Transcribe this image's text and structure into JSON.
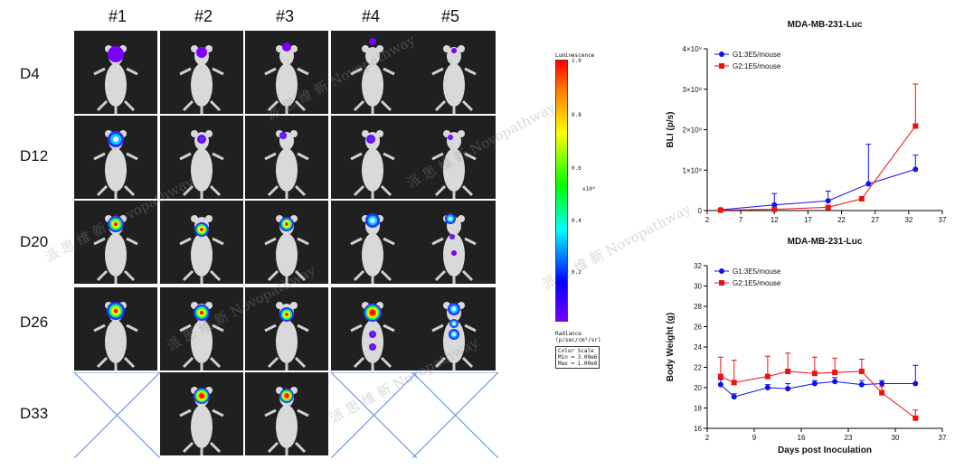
{
  "columns": [
    "#1",
    "#2",
    "#3",
    "#4",
    "#5"
  ],
  "rows": [
    "D4",
    "D12",
    "D20",
    "D26",
    "D33"
  ],
  "watermark": {
    "cn": "派 思 维 新",
    "en": "Novopathway"
  },
  "colorbar": {
    "title": "Luminescence",
    "ticks": [
      "1.0",
      "0.8",
      "0.6",
      "0.4",
      "0.2"
    ],
    "exponent": "x10⁸",
    "radiance_label": "Radiance",
    "radiance_units": "(p/sec/cm²/sr)",
    "scale_title": "Color Scale",
    "scale_min": "Min = 3.00e6",
    "scale_max": "Max = 1.00e8"
  },
  "series_colors": {
    "G1": "#1010ee",
    "G2": "#ee1111"
  },
  "chart_data": [
    {
      "type": "line",
      "title": "MDA-MB-231-Luc",
      "xlabel": "",
      "ylabel": "BLI (p/s)",
      "xlim": [
        2,
        37
      ],
      "xticks": [
        "2",
        "7",
        "12",
        "17",
        "22",
        "27",
        "32",
        "37"
      ],
      "ylim": [
        0,
        4
      ],
      "yticks": [
        "0",
        "1×10⁹",
        "2×10⁹",
        "3×10⁹",
        "4×10⁹"
      ],
      "y_unit_note": "values in units of 10⁹ p/s",
      "legend_position": "top-left",
      "series": [
        {
          "name": "G1:3E5/mouse",
          "color": "#1010ee",
          "marker": "circle",
          "x": [
            4,
            12,
            20,
            26,
            33
          ],
          "y": [
            0.02,
            0.14,
            0.24,
            0.66,
            1.02
          ],
          "err": [
            0.01,
            0.28,
            0.24,
            0.98,
            0.35
          ]
        },
        {
          "name": "G2:1E5/mouse",
          "color": "#ee1111",
          "marker": "square",
          "x": [
            4,
            12,
            20,
            25,
            33
          ],
          "y": [
            0.01,
            0.03,
            0.08,
            0.29,
            2.09
          ],
          "err": [
            0.0,
            0.0,
            0.0,
            0.0,
            1.04
          ]
        }
      ]
    },
    {
      "type": "line",
      "title": "MDA-MB-231-Luc",
      "xlabel": "Days post Inoculation",
      "ylabel": "Body Weight (g)",
      "xlim": [
        2,
        37
      ],
      "xticks": [
        "2",
        "9",
        "16",
        "23",
        "30",
        "37"
      ],
      "ylim": [
        16,
        32
      ],
      "yticks": [
        "16",
        "18",
        "20",
        "22",
        "24",
        "26",
        "28",
        "30",
        "32"
      ],
      "legend_position": "top-left",
      "series": [
        {
          "name": "G1:3E5/mouse",
          "color": "#1010ee",
          "marker": "circle",
          "x": [
            4,
            6,
            11,
            14,
            18,
            21,
            25,
            28,
            33
          ],
          "y": [
            20.3,
            19.1,
            20.0,
            19.9,
            20.4,
            20.6,
            20.3,
            20.4,
            20.4
          ],
          "err": [
            0.5,
            0.3,
            0.3,
            0.5,
            0.3,
            0.4,
            0.4,
            0.3,
            1.8
          ]
        },
        {
          "name": "G2:1E5/mouse",
          "color": "#ee1111",
          "marker": "square",
          "x": [
            4,
            6,
            11,
            14,
            18,
            21,
            25,
            28,
            33
          ],
          "y": [
            21.1,
            20.5,
            21.1,
            21.6,
            21.4,
            21.5,
            21.6,
            19.5,
            17.0
          ],
          "err": [
            1.9,
            2.2,
            2.0,
            1.8,
            1.6,
            1.4,
            1.2,
            0.6,
            0.8
          ]
        }
      ]
    }
  ]
}
